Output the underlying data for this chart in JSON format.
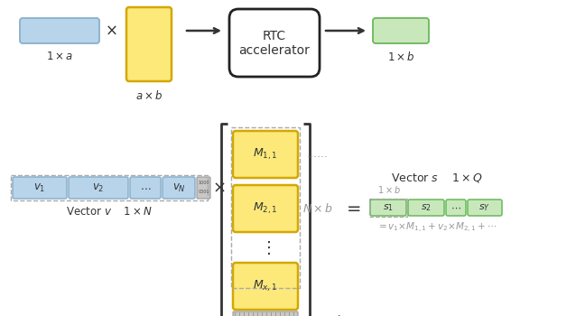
{
  "bg_color": "#ffffff",
  "blue_fill": "#b8d4ea",
  "blue_edge": "#8ab0cc",
  "yellow_fill": "#fce97a",
  "yellow_edge": "#d4a800",
  "green_fill": "#c8e8bc",
  "green_edge": "#6ab85a",
  "gray_fill": "#c8c8c8",
  "gray_edge": "#999999",
  "dashed_color": "#aaaaaa",
  "rtc_box_color": "#ffffff",
  "rtc_box_edge": "#222222",
  "arrow_color": "#333333",
  "text_color": "#333333",
  "math_color": "#999999"
}
